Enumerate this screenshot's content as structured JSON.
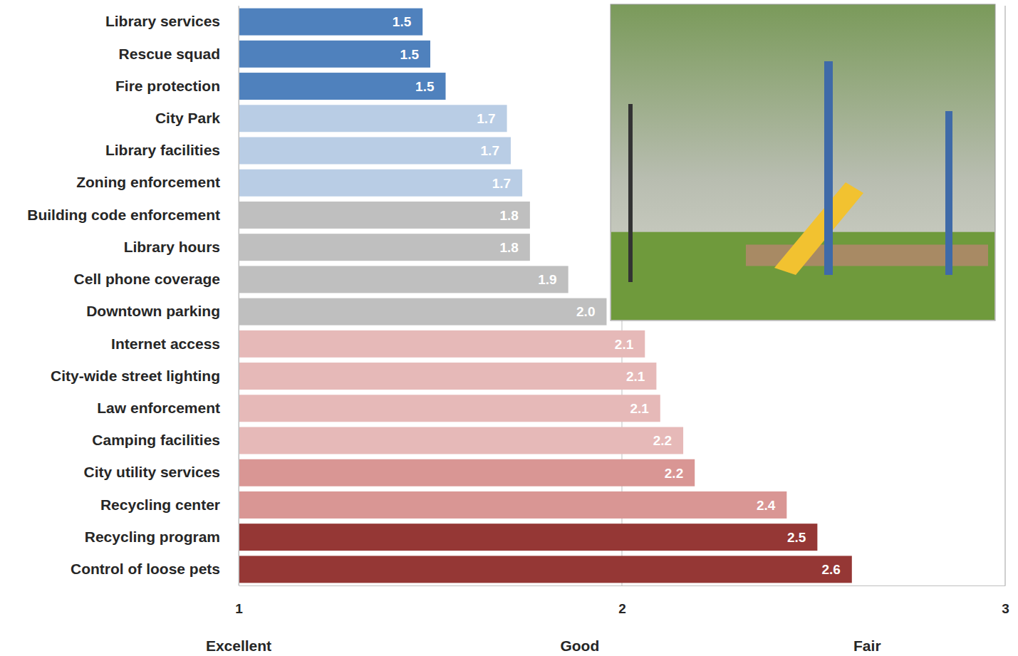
{
  "chart_data": {
    "type": "bar",
    "orientation": "horizontal",
    "categories": [
      "Library services",
      "Rescue squad",
      "Fire protection",
      "City Park",
      "Library facilities",
      "Zoning enforcement",
      "Building code enforcement",
      "Library hours",
      "Cell phone coverage",
      "Downtown parking",
      "Internet access",
      "City-wide street lighting",
      "Law enforcement",
      "Camping facilities",
      "City utility services",
      "Recycling center",
      "Recycling program",
      "Control of loose pets"
    ],
    "values": [
      1.48,
      1.5,
      1.54,
      1.7,
      1.71,
      1.74,
      1.76,
      1.76,
      1.86,
      1.96,
      2.06,
      2.09,
      2.1,
      2.16,
      2.19,
      2.43,
      2.51,
      2.6
    ],
    "value_labels": [
      "1.5",
      "1.5",
      "1.5",
      "1.7",
      "1.7",
      "1.7",
      "1.8",
      "1.8",
      "1.9",
      "2.0",
      "2.1",
      "2.1",
      "2.1",
      "2.2",
      "2.2",
      "2.4",
      "2.5",
      "2.6"
    ],
    "colors": [
      "#4f81bd",
      "#4f81bd",
      "#4f81bd",
      "#b9cde5",
      "#b9cde5",
      "#b9cde5",
      "#bfbfbf",
      "#bfbfbf",
      "#bfbfbf",
      "#bfbfbf",
      "#e6b9b8",
      "#e6b9b8",
      "#e6b9b8",
      "#e6b9b8",
      "#d99694",
      "#d99694",
      "#953735",
      "#953735"
    ],
    "xlim": [
      1,
      3
    ],
    "xticks": [
      1,
      2,
      3
    ],
    "grid": true,
    "data_labels": true,
    "annotations": [
      {
        "text": "Excellent",
        "x": 1
      },
      {
        "text": "Good",
        "x": 1.89
      },
      {
        "text": "Fair",
        "x": 2.64
      }
    ]
  }
}
